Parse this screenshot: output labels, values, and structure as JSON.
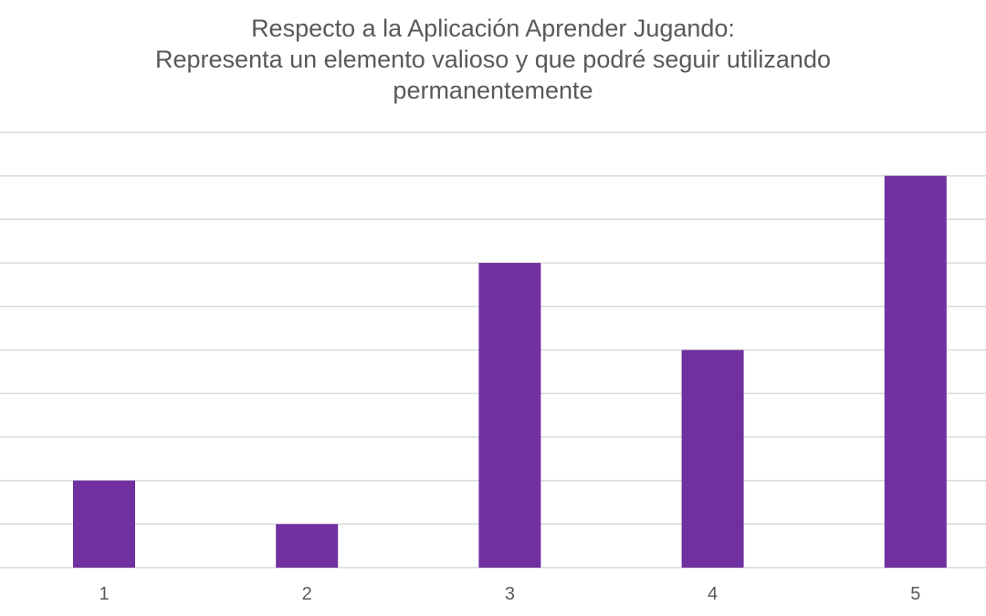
{
  "chart_data": {
    "type": "bar",
    "title_lines": [
      "Respecto a la Aplicación Aprender Jugando:",
      "Representa un elemento valioso y que podré seguir utilizando",
      "permanentemente"
    ],
    "categories": [
      "1",
      "2",
      "3",
      "4",
      "5"
    ],
    "values": [
      2,
      1,
      7,
      5,
      9
    ],
    "ylim": [
      0,
      10
    ],
    "grid": true,
    "bar_color": "#7030A0",
    "gridline_color": "#D9D9D9",
    "text_color": "#595959",
    "legend": false
  }
}
